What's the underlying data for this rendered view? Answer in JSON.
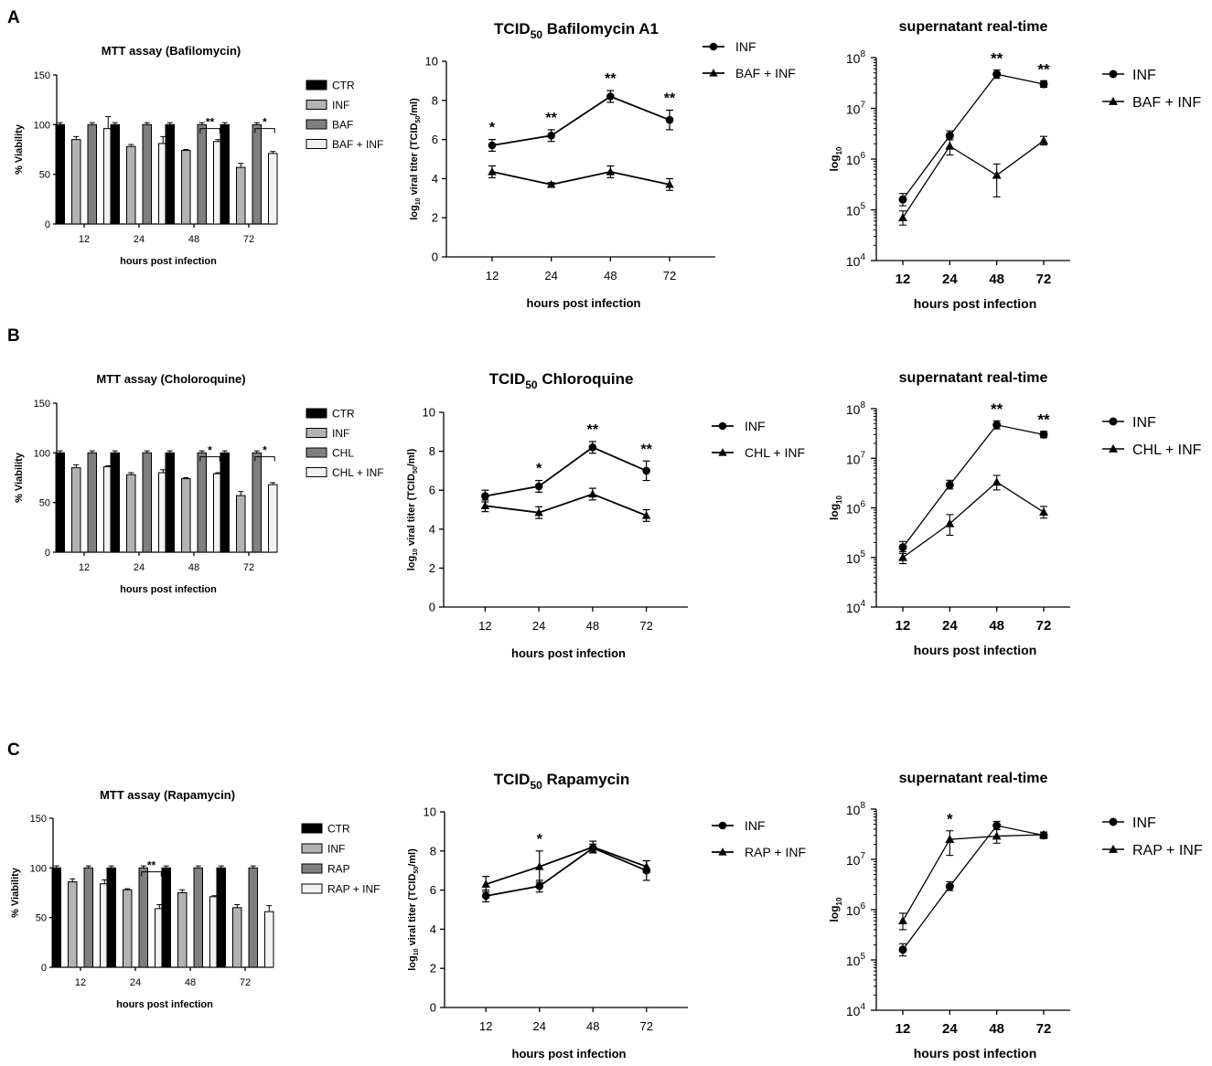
{
  "panels": [
    {
      "letter": "A",
      "mtt": {
        "title": "MTT assay (Bafilomycin)",
        "ylabel": "% Viability",
        "xlabel": "hours post infection",
        "yticks": [
          "0",
          "50",
          "100",
          "150"
        ],
        "ylim": [
          0,
          150
        ],
        "categories": [
          "12",
          "24",
          "48",
          "72"
        ],
        "legend": [
          "CTR",
          "INF",
          "BAF",
          "BAF + INF"
        ],
        "values": [
          [
            100,
            85,
            100,
            96
          ],
          [
            100,
            78,
            100,
            81
          ],
          [
            100,
            74,
            100,
            83
          ],
          [
            100,
            57,
            100,
            71
          ]
        ],
        "errors": [
          [
            2,
            3,
            2,
            12
          ],
          [
            2,
            2,
            2,
            7
          ],
          [
            2,
            1,
            2,
            2
          ],
          [
            2,
            4,
            2,
            2
          ]
        ],
        "sig": [
          {
            "cat": 2,
            "label": "**"
          },
          {
            "cat": 3,
            "label": "*"
          }
        ]
      },
      "tcid": {
        "title_pre": "TCID",
        "title_sub": "50",
        "title_post": " Bafilomycin A1",
        "ylabel_pre": "log",
        "ylabel_sub": "10",
        "ylabel_mid": " viral titer (TCID",
        "ylabel_sub2": "50",
        "ylabel_post": "/ml)",
        "xlabel": "hours post infection",
        "yticks": [
          "0",
          "2",
          "4",
          "6",
          "8",
          "10"
        ],
        "ylim": [
          0,
          10
        ],
        "categories": [
          "12",
          "24",
          "48",
          "72"
        ],
        "series": [
          {
            "name": "INF",
            "marker": "circle",
            "values": [
              5.7,
              6.2,
              8.2,
              7.0
            ],
            "errors": [
              0.3,
              0.3,
              0.3,
              0.5
            ]
          },
          {
            "name": "BAF + INF",
            "marker": "triangle",
            "values": [
              4.35,
              3.7,
              4.35,
              3.7
            ],
            "errors": [
              0.3,
              0.1,
              0.3,
              0.3
            ]
          }
        ],
        "sig": [
          "*",
          "**",
          "**",
          "**"
        ]
      },
      "rt": {
        "title": "supernatant real-time",
        "ylabel_pre": "log",
        "ylabel_sub": "10",
        "xlabel": "hours post infection",
        "ytick_base": "10",
        "yexps": [
          "4",
          "5",
          "6",
          "7",
          "8"
        ],
        "ylim_exp": [
          4,
          8
        ],
        "categories": [
          "12",
          "24",
          "48",
          "72"
        ],
        "series": [
          {
            "name": "INF",
            "marker": "circle",
            "values": [
              160000,
              2900000,
              47000000,
              30000000
            ],
            "err_lo": [
              40000,
              500000,
              8000000,
              4000000
            ],
            "err_hi": [
              50000,
              700000,
              10000000,
              5000000
            ]
          },
          {
            "name": "BAF + INF",
            "marker": "triangle",
            "values": [
              70000,
              1800000,
              480000,
              2300000
            ],
            "err_lo": [
              20000,
              600000,
              300000,
              400000
            ],
            "err_hi": [
              25000,
              800000,
              320000,
              500000
            ]
          }
        ],
        "sig": [
          "",
          "",
          "**",
          "**"
        ]
      }
    },
    {
      "letter": "B",
      "mtt": {
        "title": "MTT assay (Choloroquine)",
        "ylabel": "% Viability",
        "xlabel": "hours post infection",
        "yticks": [
          "0",
          "50",
          "100",
          "150"
        ],
        "ylim": [
          0,
          150
        ],
        "categories": [
          "12",
          "24",
          "48",
          "72"
        ],
        "legend": [
          "CTR",
          "INF",
          "CHL",
          "CHL + INF"
        ],
        "values": [
          [
            100,
            85,
            100,
            86
          ],
          [
            100,
            78,
            100,
            80
          ],
          [
            100,
            74,
            100,
            79
          ],
          [
            100,
            57,
            100,
            68
          ]
        ],
        "errors": [
          [
            2,
            3,
            2,
            1
          ],
          [
            2,
            2,
            2,
            3
          ],
          [
            2,
            1,
            2,
            1
          ],
          [
            2,
            4,
            2,
            2
          ]
        ],
        "sig": [
          {
            "cat": 2,
            "label": "*"
          },
          {
            "cat": 3,
            "label": "*"
          }
        ]
      },
      "tcid": {
        "title_pre": "TCID",
        "title_sub": "50",
        "title_post": " Chloroquine",
        "ylabel_pre": "log",
        "ylabel_sub": "10",
        "ylabel_mid": " viral titer (TCID",
        "ylabel_sub2": "50",
        "ylabel_post": "/ml)",
        "xlabel": "hours post infection",
        "yticks": [
          "0",
          "2",
          "4",
          "6",
          "8",
          "10"
        ],
        "ylim": [
          0,
          10
        ],
        "categories": [
          "12",
          "24",
          "48",
          "72"
        ],
        "series": [
          {
            "name": "INF",
            "marker": "circle",
            "values": [
              5.7,
              6.2,
              8.2,
              7.0
            ],
            "errors": [
              0.3,
              0.3,
              0.3,
              0.5
            ]
          },
          {
            "name": "CHL + INF",
            "marker": "triangle",
            "values": [
              5.2,
              4.85,
              5.8,
              4.7
            ],
            "errors": [
              0.3,
              0.3,
              0.3,
              0.3
            ]
          }
        ],
        "sig": [
          "",
          "*",
          "**",
          "**"
        ]
      },
      "rt": {
        "title": "supernatant real-time",
        "ylabel_pre": "log",
        "ylabel_sub": "10",
        "xlabel": "hours post infection",
        "ytick_base": "10",
        "yexps": [
          "4",
          "5",
          "6",
          "7",
          "8"
        ],
        "ylim_exp": [
          4,
          8
        ],
        "categories": [
          "12",
          "24",
          "48",
          "72"
        ],
        "series": [
          {
            "name": "INF",
            "marker": "circle",
            "values": [
              160000,
              2900000,
              47000000,
              30000000
            ],
            "err_lo": [
              40000,
              500000,
              8000000,
              4000000
            ],
            "err_hi": [
              50000,
              700000,
              10000000,
              5000000
            ]
          },
          {
            "name": "CHL + INF",
            "marker": "triangle",
            "values": [
              100000,
              480000,
              3300000,
              820000
            ],
            "err_lo": [
              25000,
              200000,
              1000000,
              200000
            ],
            "err_hi": [
              30000,
              250000,
              1200000,
              250000
            ]
          }
        ],
        "sig": [
          "",
          "",
          "**",
          "**"
        ]
      }
    },
    {
      "letter": "C",
      "mtt": {
        "title": "MTT assay (Rapamycin)",
        "ylabel": "% Viability",
        "xlabel": "hours post infection",
        "yticks": [
          "0",
          "50",
          "100",
          "150"
        ],
        "ylim": [
          0,
          150
        ],
        "categories": [
          "12",
          "24",
          "48",
          "72"
        ],
        "legend": [
          "CTR",
          "INF",
          "RAP",
          "RAP + INF"
        ],
        "values": [
          [
            100,
            86,
            100,
            84
          ],
          [
            100,
            78,
            100,
            59
          ],
          [
            100,
            75,
            100,
            71
          ],
          [
            100,
            60,
            100,
            56
          ]
        ],
        "errors": [
          [
            2,
            3,
            2,
            4
          ],
          [
            2,
            1,
            2,
            4
          ],
          [
            2,
            3,
            2,
            1
          ],
          [
            2,
            3,
            2,
            6
          ]
        ],
        "sig": [
          {
            "cat": 1,
            "label": "**"
          }
        ]
      },
      "tcid": {
        "title_pre": "TCID",
        "title_sub": "50",
        "title_post": " Rapamycin",
        "ylabel_pre": "log",
        "ylabel_sub": "10",
        "ylabel_mid": " viral titer (TCID",
        "ylabel_sub2": "50",
        "ylabel_post": "/ml)",
        "xlabel": "hours post infection",
        "yticks": [
          "0",
          "2",
          "4",
          "6",
          "8",
          "10"
        ],
        "ylim": [
          0,
          10
        ],
        "categories": [
          "12",
          "24",
          "48",
          "72"
        ],
        "series": [
          {
            "name": "INF",
            "marker": "circle",
            "values": [
              5.7,
              6.2,
              8.15,
              7.0
            ],
            "errors": [
              0.3,
              0.3,
              0.2,
              0.5
            ]
          },
          {
            "name": "RAP + INF",
            "marker": "triangle",
            "values": [
              6.3,
              7.2,
              8.2,
              7.2
            ],
            "errors": [
              0.4,
              0.8,
              0.3,
              0.3
            ]
          }
        ],
        "sig": [
          "",
          "*",
          "",
          ""
        ]
      },
      "rt": {
        "title": "supernatant real-time",
        "ylabel_pre": "log",
        "ylabel_sub": "10",
        "xlabel": "hours post infection",
        "ytick_base": "10",
        "yexps": [
          "4",
          "5",
          "6",
          "7",
          "8"
        ],
        "ylim_exp": [
          4,
          8
        ],
        "categories": [
          "12",
          "24",
          "48",
          "72"
        ],
        "series": [
          {
            "name": "INF",
            "marker": "circle",
            "values": [
              160000,
              2900000,
              47000000,
              30000000
            ],
            "err_lo": [
              40000,
              500000,
              8000000,
              4000000
            ],
            "err_hi": [
              50000,
              700000,
              10000000,
              5000000
            ]
          },
          {
            "name": "RAP + INF",
            "marker": "triangle",
            "values": [
              600000,
              25000000,
              29000000,
              31000000
            ],
            "err_lo": [
              200000,
              13000000,
              8000000,
              3000000
            ],
            "err_hi": [
              250000,
              12000000,
              10000000,
              4000000
            ]
          }
        ],
        "sig": [
          "",
          "*",
          "",
          ""
        ]
      }
    }
  ],
  "chart_data": [
    {
      "type": "bar",
      "title": "MTT assay (Bafilomycin)",
      "xlabel": "hours post infection",
      "ylabel": "% Viability",
      "ylim": [
        0,
        150
      ],
      "categories": [
        "12",
        "24",
        "48",
        "72"
      ],
      "series": [
        {
          "name": "CTR",
          "values": [
            100,
            100,
            100,
            100
          ]
        },
        {
          "name": "INF",
          "values": [
            85,
            78,
            74,
            57
          ]
        },
        {
          "name": "BAF",
          "values": [
            100,
            100,
            100,
            100
          ]
        },
        {
          "name": "BAF + INF",
          "values": [
            96,
            81,
            83,
            71
          ]
        }
      ]
    },
    {
      "type": "line",
      "title": "TCID 50 Bafilomycin A1",
      "xlabel": "hours post infection",
      "ylabel": "log 10 viral titer (TCID50/ml)",
      "ylim": [
        0,
        10
      ],
      "categories": [
        "12",
        "24",
        "48",
        "72"
      ],
      "series": [
        {
          "name": "INF",
          "values": [
            5.7,
            6.2,
            8.2,
            7.0
          ]
        },
        {
          "name": "BAF + INF",
          "values": [
            4.35,
            3.7,
            4.35,
            3.7
          ]
        }
      ]
    },
    {
      "type": "line",
      "title": "supernatant real-time",
      "xlabel": "hours post infection",
      "ylabel": "log 10",
      "yscale": "log",
      "ylim": [
        10000,
        100000000
      ],
      "categories": [
        "12",
        "24",
        "48",
        "72"
      ],
      "series": [
        {
          "name": "INF",
          "values": [
            160000,
            2900000,
            47000000,
            30000000
          ]
        },
        {
          "name": "BAF + INF",
          "values": [
            70000,
            1800000,
            480000,
            2300000
          ]
        }
      ]
    },
    {
      "type": "bar",
      "title": "MTT assay (Choloroquine)",
      "xlabel": "hours post infection",
      "ylabel": "% Viability",
      "ylim": [
        0,
        150
      ],
      "categories": [
        "12",
        "24",
        "48",
        "72"
      ],
      "series": [
        {
          "name": "CTR",
          "values": [
            100,
            100,
            100,
            100
          ]
        },
        {
          "name": "INF",
          "values": [
            85,
            78,
            74,
            57
          ]
        },
        {
          "name": "CHL",
          "values": [
            100,
            100,
            100,
            100
          ]
        },
        {
          "name": "CHL + INF",
          "values": [
            86,
            80,
            79,
            68
          ]
        }
      ]
    },
    {
      "type": "line",
      "title": "TCID 50 Chloroquine",
      "xlabel": "hours post infection",
      "ylabel": "log 10 viral titer (TCID50/ml)",
      "ylim": [
        0,
        10
      ],
      "categories": [
        "12",
        "24",
        "48",
        "72"
      ],
      "series": [
        {
          "name": "INF",
          "values": [
            5.7,
            6.2,
            8.2,
            7.0
          ]
        },
        {
          "name": "CHL + INF",
          "values": [
            5.2,
            4.85,
            5.8,
            4.7
          ]
        }
      ]
    },
    {
      "type": "line",
      "title": "supernatant real-time",
      "xlabel": "hours post infection",
      "ylabel": "log 10",
      "yscale": "log",
      "ylim": [
        10000,
        100000000
      ],
      "categories": [
        "12",
        "24",
        "48",
        "72"
      ],
      "series": [
        {
          "name": "INF",
          "values": [
            160000,
            2900000,
            47000000,
            30000000
          ]
        },
        {
          "name": "CHL + INF",
          "values": [
            100000,
            480000,
            3300000,
            820000
          ]
        }
      ]
    },
    {
      "type": "bar",
      "title": "MTT assay (Rapamycin)",
      "xlabel": "hours post infection",
      "ylabel": "% Viability",
      "ylim": [
        0,
        150
      ],
      "categories": [
        "12",
        "24",
        "48",
        "72"
      ],
      "series": [
        {
          "name": "CTR",
          "values": [
            100,
            100,
            100,
            100
          ]
        },
        {
          "name": "INF",
          "values": [
            86,
            78,
            75,
            60
          ]
        },
        {
          "name": "RAP",
          "values": [
            100,
            100,
            100,
            100
          ]
        },
        {
          "name": "RAP + INF",
          "values": [
            84,
            59,
            71,
            56
          ]
        }
      ]
    },
    {
      "type": "line",
      "title": "TCID 50 Rapamycin",
      "xlabel": "hours post infection",
      "ylabel": "log 10 viral titer (TCID50/ml)",
      "ylim": [
        0,
        10
      ],
      "categories": [
        "12",
        "24",
        "48",
        "72"
      ],
      "series": [
        {
          "name": "INF",
          "values": [
            5.7,
            6.2,
            8.15,
            7.0
          ]
        },
        {
          "name": "RAP + INF",
          "values": [
            6.3,
            7.2,
            8.2,
            7.2
          ]
        }
      ]
    },
    {
      "type": "line",
      "title": "supernatant real-time",
      "xlabel": "hours post infection",
      "ylabel": "log 10",
      "yscale": "log",
      "ylim": [
        10000,
        100000000
      ],
      "categories": [
        "12",
        "24",
        "48",
        "72"
      ],
      "series": [
        {
          "name": "INF",
          "values": [
            160000,
            2900000,
            47000000,
            30000000
          ]
        },
        {
          "name": "RAP + INF",
          "values": [
            600000,
            25000000,
            29000000,
            31000000
          ]
        }
      ]
    }
  ]
}
